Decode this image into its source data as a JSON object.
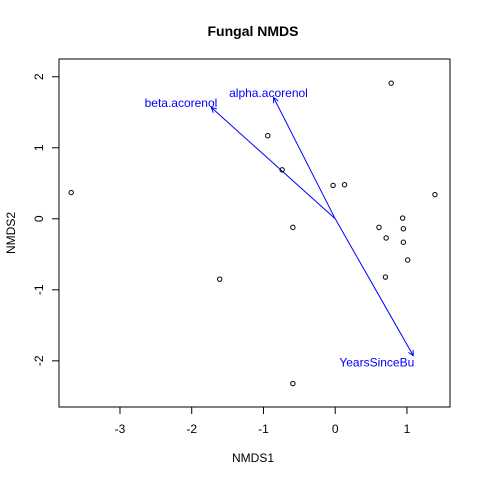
{
  "chart_data": {
    "type": "scatter",
    "title": "Fungal NMDS",
    "xlabel": "NMDS1",
    "ylabel": "NMDS2",
    "xlim": [
      -3.85,
      1.6
    ],
    "ylim": [
      -2.65,
      2.25
    ],
    "xticks": [
      -3,
      -2,
      -1,
      0,
      1
    ],
    "yticks": [
      -2,
      -1,
      0,
      1,
      2
    ],
    "xtick_labels": [
      "-3",
      "-2",
      "-1",
      "0",
      "1"
    ],
    "ytick_labels": [
      "-2",
      "-1",
      "0",
      "1",
      "2"
    ],
    "grid": false,
    "points": [
      {
        "x": -3.68,
        "y": 0.37
      },
      {
        "x": -1.61,
        "y": -0.85
      },
      {
        "x": -0.94,
        "y": 1.17
      },
      {
        "x": -0.74,
        "y": 0.69
      },
      {
        "x": -0.59,
        "y": -0.12
      },
      {
        "x": -0.59,
        "y": -2.32
      },
      {
        "x": -0.03,
        "y": 0.47
      },
      {
        "x": 0.13,
        "y": 0.48
      },
      {
        "x": 0.61,
        "y": -0.12
      },
      {
        "x": 0.71,
        "y": -0.27
      },
      {
        "x": 0.7,
        "y": -0.82
      },
      {
        "x": 0.78,
        "y": 1.91
      },
      {
        "x": 0.94,
        "y": 0.01
      },
      {
        "x": 0.95,
        "y": -0.14
      },
      {
        "x": 0.95,
        "y": -0.33
      },
      {
        "x": 1.01,
        "y": -0.58
      },
      {
        "x": 1.39,
        "y": 0.34
      }
    ],
    "vectors": [
      {
        "label": "alpha.acorenol",
        "x": -0.86,
        "y": 1.71,
        "label_x": -0.93,
        "label_y": 1.77
      },
      {
        "label": "beta.acorenol",
        "x": -1.73,
        "y": 1.57,
        "label_x": -2.15,
        "label_y": 1.63
      },
      {
        "label": "YearsSinceBu",
        "x": 1.09,
        "y": -1.93,
        "label_x": 0.58,
        "label_y": -2.02
      }
    ],
    "vector_color": "#0000ff"
  }
}
